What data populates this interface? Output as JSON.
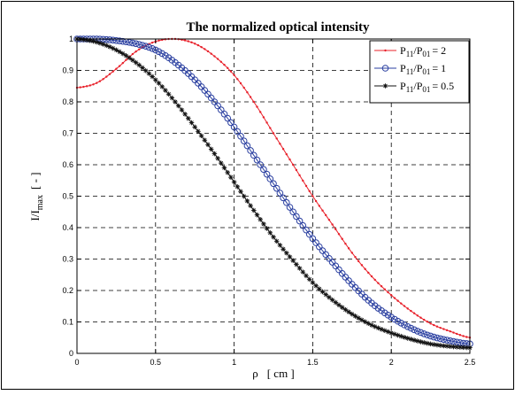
{
  "chart_data": {
    "type": "line",
    "title": "The normalized optical intensity",
    "xlabel": {
      "main": "ρ",
      "unit": "[ cm ]"
    },
    "ylabel": {
      "main": "I/I",
      "sub": "max",
      "unit": "[ - ]"
    },
    "xlim": [
      0,
      2.5
    ],
    "ylim": [
      0,
      1
    ],
    "xticks": [
      "0",
      "0.5",
      "1",
      "1.5",
      "2",
      "2.5"
    ],
    "yticks": [
      "0",
      "0.1",
      "0.2",
      "0.3",
      "0.4",
      "0.5",
      "0.6",
      "0.7",
      "0.8",
      "0.9",
      "1"
    ],
    "grid": true,
    "legend_position": "top-right",
    "x": [
      0,
      0.125,
      0.25,
      0.375,
      0.5,
      0.625,
      0.75,
      0.875,
      1.0,
      1.125,
      1.25,
      1.375,
      1.5,
      1.625,
      1.75,
      1.875,
      2.0,
      2.125,
      2.25,
      2.375,
      2.5
    ],
    "series": [
      {
        "name": "P11/P01 = 2",
        "legend": {
          "a": "P",
          "a_sub": "11",
          "b": "/P",
          "b_sub": "01",
          "tail": "= 2"
        },
        "color": "#e8202a",
        "marker": "dot",
        "values": [
          0.845,
          0.86,
          0.905,
          0.96,
          0.992,
          1.0,
          0.985,
          0.945,
          0.885,
          0.8,
          0.7,
          0.6,
          0.5,
          0.41,
          0.32,
          0.245,
          0.185,
          0.135,
          0.095,
          0.07,
          0.05
        ]
      },
      {
        "name": "P11/P01 = 1",
        "legend": {
          "a": "P",
          "a_sub": "11",
          "b": "/P",
          "b_sub": "01",
          "tail": "= 1"
        },
        "color": "#2a3fa0",
        "marker": "circle",
        "values": [
          1.0,
          1.0,
          0.995,
          0.985,
          0.965,
          0.925,
          0.87,
          0.8,
          0.72,
          0.63,
          0.54,
          0.45,
          0.365,
          0.29,
          0.22,
          0.16,
          0.115,
          0.08,
          0.055,
          0.04,
          0.03
        ]
      },
      {
        "name": "P11/P01 = 0.5",
        "legend": {
          "a": "P",
          "a_sub": "11",
          "b": "/P",
          "b_sub": "01",
          "tail": "= 0.5"
        },
        "color": "#111111",
        "marker": "star",
        "values": [
          1.0,
          0.99,
          0.965,
          0.925,
          0.87,
          0.8,
          0.72,
          0.635,
          0.545,
          0.455,
          0.37,
          0.295,
          0.225,
          0.17,
          0.125,
          0.09,
          0.065,
          0.045,
          0.03,
          0.022,
          0.018
        ]
      }
    ]
  }
}
